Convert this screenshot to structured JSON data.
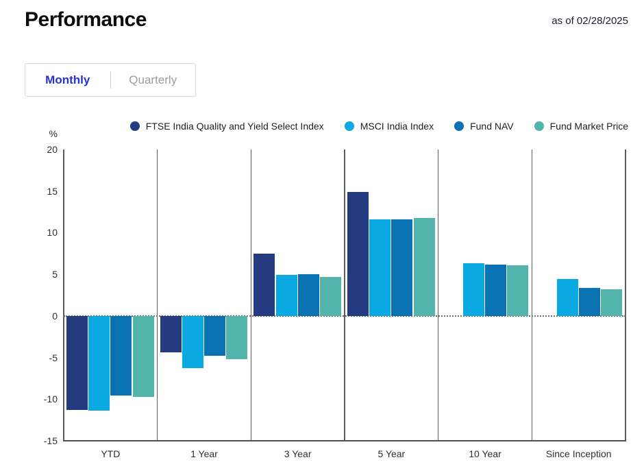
{
  "header": {
    "title": "Performance",
    "as_of": "as of 02/28/2025"
  },
  "tabs": {
    "monthly": "Monthly",
    "quarterly": "Quarterly"
  },
  "legend": [
    {
      "label": "FTSE India Quality and Yield Select Index",
      "color": "#243b82"
    },
    {
      "label": "MSCI India Index",
      "color": "#0aa9e2"
    },
    {
      "label": "Fund NAV",
      "color": "#0872b3"
    },
    {
      "label": "Fund Market Price",
      "color": "#52b4ab"
    }
  ],
  "chart_data": {
    "type": "bar",
    "title": "Performance",
    "ylabel": "%",
    "ylim": [
      -15,
      20
    ],
    "yticks": [
      20,
      15,
      10,
      5,
      0,
      -5,
      -10,
      -15
    ],
    "grid": false,
    "zero_line": "dotted",
    "group_dividers": true,
    "legend_position": "top",
    "categories": [
      "YTD",
      "1 Year",
      "3 Year",
      "5 Year",
      "10 Year",
      "Since Inception"
    ],
    "series": [
      {
        "name": "FTSE India Quality and Yield Select Index",
        "color": "#243b82",
        "values": [
          -11.3,
          -4.4,
          7.5,
          14.9,
          null,
          null
        ]
      },
      {
        "name": "MSCI India Index",
        "color": "#0aa9e2",
        "values": [
          -11.4,
          -6.3,
          4.9,
          11.6,
          6.3,
          4.4
        ]
      },
      {
        "name": "Fund NAV",
        "color": "#0872b3",
        "values": [
          -9.6,
          -4.8,
          5.0,
          11.6,
          6.2,
          3.4
        ]
      },
      {
        "name": "Fund Market Price",
        "color": "#52b4ab",
        "values": [
          -9.7,
          -5.2,
          4.7,
          11.8,
          6.1,
          3.2
        ]
      }
    ]
  }
}
